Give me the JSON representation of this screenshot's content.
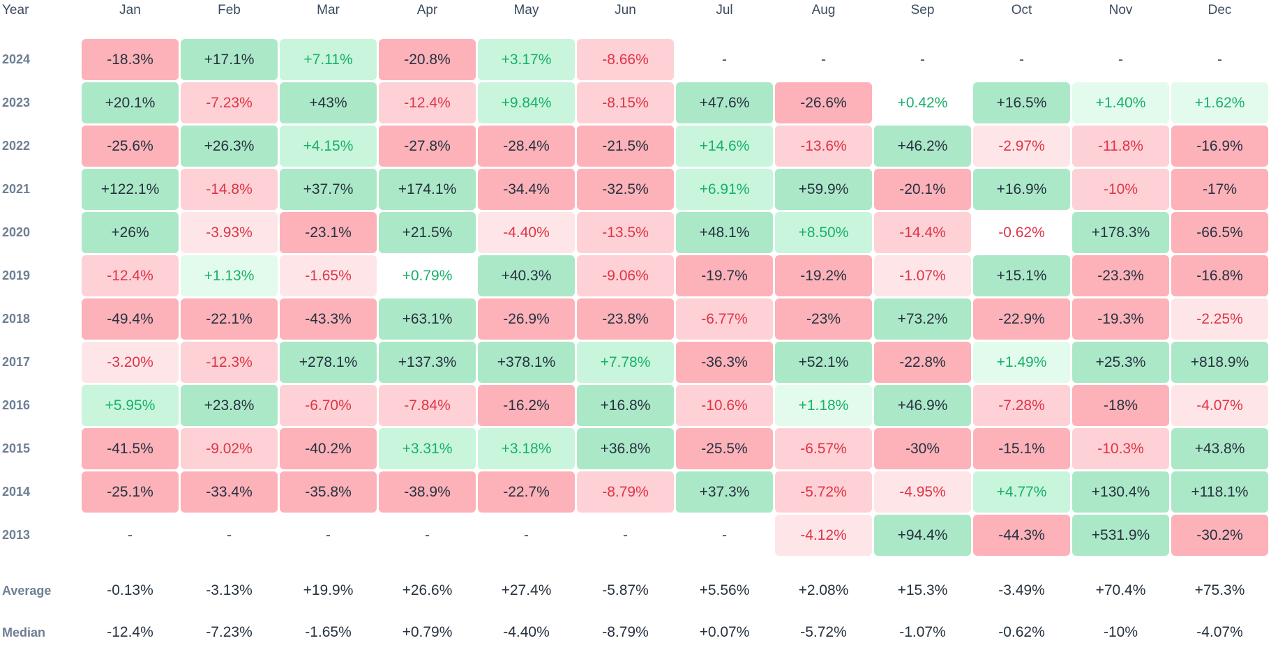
{
  "header": {
    "year_label": "Year"
  },
  "months": [
    "Jan",
    "Feb",
    "Mar",
    "Apr",
    "May",
    "Jun",
    "Jul",
    "Aug",
    "Sep",
    "Oct",
    "Nov",
    "Dec"
  ],
  "colors": {
    "pos_strong": "#abe8c8",
    "pos_mid": "#c8f5dc",
    "pos_light": "#e3fbec",
    "neg_strong": "#fdb1b9",
    "neg_mid": "#fdd1d5",
    "neg_light": "#fee6e8"
  },
  "chart_data": {
    "type": "heatmap",
    "columns": [
      "Jan",
      "Feb",
      "Mar",
      "Apr",
      "May",
      "Jun",
      "Jul",
      "Aug",
      "Sep",
      "Oct",
      "Nov",
      "Dec"
    ],
    "rows": [
      {
        "year": "2024",
        "values": [
          "-18.3%",
          "+17.1%",
          "+7.11%",
          "-20.8%",
          "+3.17%",
          "-8.66%",
          "-",
          "-",
          "-",
          "-",
          "-",
          "-"
        ]
      },
      {
        "year": "2023",
        "values": [
          "+20.1%",
          "-7.23%",
          "+43%",
          "-12.4%",
          "+9.84%",
          "-8.15%",
          "+47.6%",
          "-26.6%",
          "+0.42%",
          "+16.5%",
          "+1.40%",
          "+1.62%"
        ]
      },
      {
        "year": "2022",
        "values": [
          "-25.6%",
          "+26.3%",
          "+4.15%",
          "-27.8%",
          "-28.4%",
          "-21.5%",
          "+14.6%",
          "-13.6%",
          "+46.2%",
          "-2.97%",
          "-11.8%",
          "-16.9%"
        ]
      },
      {
        "year": "2021",
        "values": [
          "+122.1%",
          "-14.8%",
          "+37.7%",
          "+174.1%",
          "-34.4%",
          "-32.5%",
          "+6.91%",
          "+59.9%",
          "-20.1%",
          "+16.9%",
          "-10%",
          "-17%"
        ]
      },
      {
        "year": "2020",
        "values": [
          "+26%",
          "-3.93%",
          "-23.1%",
          "+21.5%",
          "-4.40%",
          "-13.5%",
          "+48.1%",
          "+8.50%",
          "-14.4%",
          "-0.62%",
          "+178.3%",
          "-66.5%"
        ]
      },
      {
        "year": "2019",
        "values": [
          "-12.4%",
          "+1.13%",
          "-1.65%",
          "+0.79%",
          "+40.3%",
          "-9.06%",
          "-19.7%",
          "-19.2%",
          "-1.07%",
          "+15.1%",
          "-23.3%",
          "-16.8%"
        ]
      },
      {
        "year": "2018",
        "values": [
          "-49.4%",
          "-22.1%",
          "-43.3%",
          "+63.1%",
          "-26.9%",
          "-23.8%",
          "-6.77%",
          "-23%",
          "+73.2%",
          "-22.9%",
          "-19.3%",
          "-2.25%"
        ]
      },
      {
        "year": "2017",
        "values": [
          "-3.20%",
          "-12.3%",
          "+278.1%",
          "+137.3%",
          "+378.1%",
          "+7.78%",
          "-36.3%",
          "+52.1%",
          "-22.8%",
          "+1.49%",
          "+25.3%",
          "+818.9%"
        ]
      },
      {
        "year": "2016",
        "values": [
          "+5.95%",
          "+23.8%",
          "-6.70%",
          "-7.84%",
          "-16.2%",
          "+16.8%",
          "-10.6%",
          "+1.18%",
          "+46.9%",
          "-7.28%",
          "-18%",
          "-4.07%"
        ]
      },
      {
        "year": "2015",
        "values": [
          "-41.5%",
          "-9.02%",
          "-40.2%",
          "+3.31%",
          "+3.18%",
          "+36.8%",
          "-25.5%",
          "-6.57%",
          "-30%",
          "-15.1%",
          "-10.3%",
          "+43.8%"
        ]
      },
      {
        "year": "2014",
        "values": [
          "-25.1%",
          "-33.4%",
          "-35.8%",
          "-38.9%",
          "-22.7%",
          "-8.79%",
          "+37.3%",
          "-5.72%",
          "-4.95%",
          "+4.77%",
          "+130.4%",
          "+118.1%"
        ]
      },
      {
        "year": "2013",
        "values": [
          "-",
          "-",
          "-",
          "-",
          "-",
          "-",
          "-",
          "-4.12%",
          "+94.4%",
          "-44.3%",
          "+531.9%",
          "-30.2%"
        ]
      }
    ],
    "summary": [
      {
        "label": "Average",
        "values": [
          "-0.13%",
          "-3.13%",
          "+19.9%",
          "+26.6%",
          "+27.4%",
          "-5.87%",
          "+5.56%",
          "+2.08%",
          "+15.3%",
          "-3.49%",
          "+70.4%",
          "+75.3%"
        ]
      },
      {
        "label": "Median",
        "values": [
          "-12.4%",
          "-7.23%",
          "-1.65%",
          "+0.79%",
          "-4.40%",
          "-8.79%",
          "+0.07%",
          "-5.72%",
          "-1.07%",
          "-0.62%",
          "-10%",
          "-4.07%"
        ]
      }
    ]
  }
}
